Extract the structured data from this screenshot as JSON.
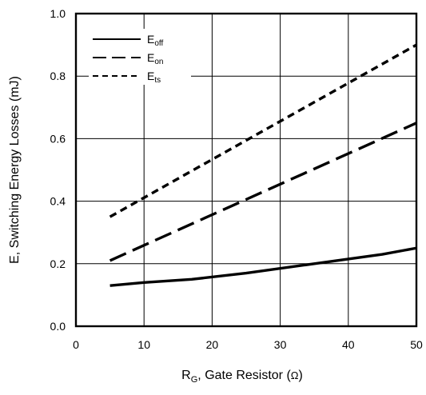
{
  "chart_data": {
    "type": "line",
    "title": "",
    "xlabel": {
      "main": "R",
      "sub": "G",
      "rest": ", Gate Resistor (",
      "unit": "Ω",
      "close": ")"
    },
    "ylabel": "E, Switching Energy Losses (mJ)",
    "xlim": [
      0,
      50
    ],
    "ylim": [
      0.0,
      1.0
    ],
    "xticks": [
      0,
      10,
      20,
      30,
      40,
      50
    ],
    "xtick_labels": [
      "0",
      "10",
      "20",
      "30",
      "40",
      "50"
    ],
    "yticks": [
      0.0,
      0.2,
      0.4,
      0.6,
      0.8,
      1.0
    ],
    "ytick_labels": [
      "0.0",
      "0.2",
      "0.4",
      "0.6",
      "0.8",
      "1.0"
    ],
    "grid": true,
    "legend_position": "top-left",
    "series": [
      {
        "name": "E",
        "name_sub": "off",
        "dash": "solid",
        "color": "#000000",
        "x": [
          5,
          10,
          17,
          25,
          35,
          45,
          50
        ],
        "y": [
          0.13,
          0.14,
          0.15,
          0.17,
          0.2,
          0.23,
          0.25
        ]
      },
      {
        "name": "E",
        "name_sub": "on",
        "dash": "long-dash",
        "color": "#000000",
        "x": [
          5,
          50
        ],
        "y": [
          0.21,
          0.65
        ]
      },
      {
        "name": "E",
        "name_sub": "ts",
        "dash": "short-dash",
        "color": "#000000",
        "x": [
          5,
          50
        ],
        "y": [
          0.35,
          0.9
        ]
      }
    ]
  }
}
